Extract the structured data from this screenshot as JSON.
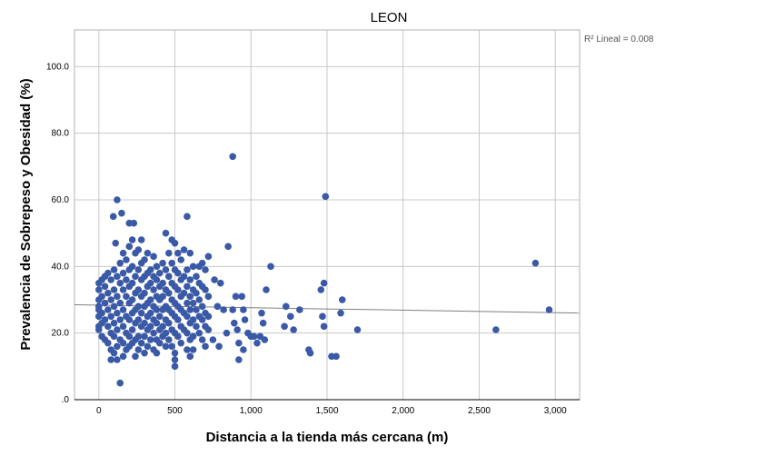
{
  "chart_data": {
    "type": "scatter",
    "title": "LEON",
    "xlabel": "Distancia a la tienda más cercana (m)",
    "ylabel": "Prevalencia de Sobrepeso y Obesidad (%)",
    "xlim": [
      -160,
      3160
    ],
    "ylim": [
      0,
      111
    ],
    "x_ticks": [
      0,
      500,
      1000,
      1500,
      2000,
      2500,
      3000
    ],
    "x_tick_labels": [
      "0",
      "500",
      "1,000",
      "1,500",
      "2,000",
      "2,500",
      "3,000"
    ],
    "y_ticks": [
      0,
      20,
      40,
      60,
      80,
      100
    ],
    "y_tick_labels": [
      ".0",
      "20.0",
      "40.0",
      "60.0",
      "80.0",
      "100.0"
    ],
    "grid": true,
    "point_color": "#3a59a6",
    "fit_line": {
      "label": "R² Lineal = 0.008",
      "x": [
        -160,
        3160
      ],
      "y": [
        28.5,
        26.0
      ],
      "color": "#808080"
    },
    "points": [
      [
        0,
        35
      ],
      [
        0,
        33
      ],
      [
        0,
        30
      ],
      [
        0,
        28
      ],
      [
        0,
        27
      ],
      [
        0,
        25
      ],
      [
        0,
        22
      ],
      [
        0,
        21
      ],
      [
        20,
        36
      ],
      [
        20,
        31
      ],
      [
        20,
        26
      ],
      [
        20,
        23
      ],
      [
        20,
        19
      ],
      [
        40,
        37
      ],
      [
        40,
        34
      ],
      [
        40,
        29
      ],
      [
        40,
        24
      ],
      [
        40,
        18
      ],
      [
        60,
        38
      ],
      [
        60,
        32
      ],
      [
        60,
        27
      ],
      [
        60,
        22
      ],
      [
        60,
        17
      ],
      [
        80,
        36
      ],
      [
        80,
        30
      ],
      [
        80,
        25
      ],
      [
        80,
        20
      ],
      [
        80,
        15
      ],
      [
        80,
        12
      ],
      [
        95,
        55
      ],
      [
        100,
        39
      ],
      [
        100,
        33
      ],
      [
        100,
        28
      ],
      [
        100,
        23
      ],
      [
        100,
        19
      ],
      [
        100,
        14
      ],
      [
        110,
        47
      ],
      [
        120,
        60
      ],
      [
        120,
        37
      ],
      [
        120,
        31
      ],
      [
        120,
        26
      ],
      [
        120,
        21
      ],
      [
        120,
        16
      ],
      [
        120,
        12
      ],
      [
        140,
        41
      ],
      [
        140,
        35
      ],
      [
        140,
        29
      ],
      [
        140,
        24
      ],
      [
        140,
        18
      ],
      [
        140,
        5
      ],
      [
        150,
        56
      ],
      [
        160,
        44
      ],
      [
        160,
        38
      ],
      [
        160,
        33
      ],
      [
        160,
        27
      ],
      [
        160,
        22
      ],
      [
        160,
        17
      ],
      [
        160,
        13
      ],
      [
        180,
        42
      ],
      [
        180,
        36
      ],
      [
        180,
        31
      ],
      [
        180,
        25
      ],
      [
        180,
        20
      ],
      [
        180,
        15
      ],
      [
        200,
        53
      ],
      [
        200,
        46
      ],
      [
        200,
        39
      ],
      [
        200,
        34
      ],
      [
        200,
        29
      ],
      [
        200,
        24
      ],
      [
        200,
        19
      ],
      [
        200,
        16
      ],
      [
        220,
        48
      ],
      [
        220,
        40
      ],
      [
        220,
        35
      ],
      [
        220,
        30
      ],
      [
        220,
        26
      ],
      [
        220,
        21
      ],
      [
        220,
        17
      ],
      [
        230,
        53
      ],
      [
        240,
        44
      ],
      [
        240,
        37
      ],
      [
        240,
        32
      ],
      [
        240,
        27
      ],
      [
        240,
        23
      ],
      [
        240,
        18
      ],
      [
        240,
        13
      ],
      [
        260,
        45
      ],
      [
        260,
        39
      ],
      [
        260,
        33
      ],
      [
        260,
        28
      ],
      [
        260,
        24
      ],
      [
        260,
        19
      ],
      [
        260,
        15
      ],
      [
        280,
        48
      ],
      [
        280,
        41
      ],
      [
        280,
        36
      ],
      [
        280,
        31
      ],
      [
        280,
        26
      ],
      [
        280,
        22
      ],
      [
        280,
        17
      ],
      [
        300,
        42
      ],
      [
        300,
        37
      ],
      [
        300,
        32
      ],
      [
        300,
        28
      ],
      [
        300,
        23
      ],
      [
        300,
        19
      ],
      [
        300,
        14
      ],
      [
        320,
        44
      ],
      [
        320,
        38
      ],
      [
        320,
        34
      ],
      [
        320,
        29
      ],
      [
        320,
        25
      ],
      [
        320,
        21
      ],
      [
        320,
        16
      ],
      [
        340,
        39
      ],
      [
        340,
        35
      ],
      [
        340,
        30
      ],
      [
        340,
        26
      ],
      [
        340,
        22
      ],
      [
        340,
        18
      ],
      [
        360,
        43
      ],
      [
        360,
        37
      ],
      [
        360,
        33
      ],
      [
        360,
        28
      ],
      [
        360,
        24
      ],
      [
        360,
        20
      ],
      [
        360,
        15
      ],
      [
        380,
        40
      ],
      [
        380,
        36
      ],
      [
        380,
        31
      ],
      [
        380,
        27
      ],
      [
        380,
        23
      ],
      [
        380,
        18
      ],
      [
        380,
        14
      ],
      [
        400,
        38
      ],
      [
        400,
        34
      ],
      [
        400,
        30
      ],
      [
        400,
        25
      ],
      [
        400,
        21
      ],
      [
        400,
        17
      ],
      [
        420,
        41
      ],
      [
        420,
        35
      ],
      [
        420,
        31
      ],
      [
        420,
        27
      ],
      [
        420,
        22
      ],
      [
        420,
        19
      ],
      [
        440,
        50
      ],
      [
        440,
        39
      ],
      [
        440,
        33
      ],
      [
        440,
        28
      ],
      [
        440,
        24
      ],
      [
        440,
        20
      ],
      [
        440,
        16
      ],
      [
        460,
        44
      ],
      [
        460,
        37
      ],
      [
        460,
        32
      ],
      [
        460,
        27
      ],
      [
        460,
        23
      ],
      [
        460,
        18
      ],
      [
        480,
        48
      ],
      [
        480,
        41
      ],
      [
        480,
        35
      ],
      [
        480,
        30
      ],
      [
        480,
        26
      ],
      [
        480,
        21
      ],
      [
        480,
        16
      ],
      [
        500,
        47
      ],
      [
        500,
        39
      ],
      [
        500,
        34
      ],
      [
        500,
        29
      ],
      [
        500,
        25
      ],
      [
        500,
        20
      ],
      [
        500,
        14
      ],
      [
        500,
        12
      ],
      [
        500,
        10
      ],
      [
        520,
        44
      ],
      [
        520,
        38
      ],
      [
        520,
        33
      ],
      [
        520,
        28
      ],
      [
        520,
        24
      ],
      [
        520,
        19
      ],
      [
        540,
        42
      ],
      [
        540,
        36
      ],
      [
        540,
        31
      ],
      [
        540,
        27
      ],
      [
        540,
        22
      ],
      [
        540,
        17
      ],
      [
        560,
        45
      ],
      [
        560,
        37
      ],
      [
        560,
        32
      ],
      [
        560,
        26
      ],
      [
        560,
        21
      ],
      [
        580,
        55
      ],
      [
        580,
        39
      ],
      [
        580,
        34
      ],
      [
        580,
        29
      ],
      [
        580,
        25
      ],
      [
        580,
        20
      ],
      [
        580,
        15
      ],
      [
        600,
        44
      ],
      [
        600,
        36
      ],
      [
        600,
        31
      ],
      [
        600,
        27
      ],
      [
        600,
        23
      ],
      [
        600,
        18
      ],
      [
        600,
        13
      ],
      [
        620,
        40
      ],
      [
        620,
        33
      ],
      [
        620,
        29
      ],
      [
        620,
        24
      ],
      [
        620,
        19
      ],
      [
        620,
        15
      ],
      [
        640,
        37
      ],
      [
        640,
        32
      ],
      [
        640,
        27
      ],
      [
        640,
        22
      ],
      [
        660,
        40
      ],
      [
        660,
        35
      ],
      [
        660,
        30
      ],
      [
        660,
        25
      ],
      [
        660,
        20
      ],
      [
        680,
        41
      ],
      [
        680,
        34
      ],
      [
        680,
        28
      ],
      [
        680,
        24
      ],
      [
        680,
        18
      ],
      [
        700,
        39
      ],
      [
        700,
        33
      ],
      [
        700,
        26
      ],
      [
        700,
        22
      ],
      [
        700,
        16
      ],
      [
        720,
        43
      ],
      [
        720,
        31
      ],
      [
        720,
        25
      ],
      [
        720,
        21
      ],
      [
        750,
        18
      ],
      [
        760,
        36
      ],
      [
        780,
        28
      ],
      [
        790,
        16
      ],
      [
        800,
        35
      ],
      [
        820,
        27
      ],
      [
        840,
        20
      ],
      [
        850,
        46
      ],
      [
        880,
        73
      ],
      [
        880,
        27
      ],
      [
        890,
        23
      ],
      [
        900,
        31
      ],
      [
        910,
        21
      ],
      [
        920,
        12
      ],
      [
        920,
        17
      ],
      [
        940,
        31
      ],
      [
        950,
        15
      ],
      [
        950,
        27
      ],
      [
        960,
        24
      ],
      [
        980,
        20
      ],
      [
        1000,
        19
      ],
      [
        1020,
        19
      ],
      [
        1040,
        17
      ],
      [
        1060,
        19
      ],
      [
        1070,
        26
      ],
      [
        1080,
        23
      ],
      [
        1090,
        18
      ],
      [
        1100,
        33
      ],
      [
        1130,
        40
      ],
      [
        1220,
        22
      ],
      [
        1230,
        28
      ],
      [
        1260,
        25
      ],
      [
        1280,
        21
      ],
      [
        1320,
        27
      ],
      [
        1380,
        15
      ],
      [
        1390,
        14
      ],
      [
        1460,
        33
      ],
      [
        1470,
        25
      ],
      [
        1480,
        35
      ],
      [
        1480,
        22
      ],
      [
        1490,
        61
      ],
      [
        1530,
        13
      ],
      [
        1560,
        13
      ],
      [
        1590,
        26
      ],
      [
        1600,
        30
      ],
      [
        1700,
        21
      ],
      [
        2610,
        21
      ],
      [
        2870,
        41
      ],
      [
        2960,
        27
      ]
    ]
  }
}
